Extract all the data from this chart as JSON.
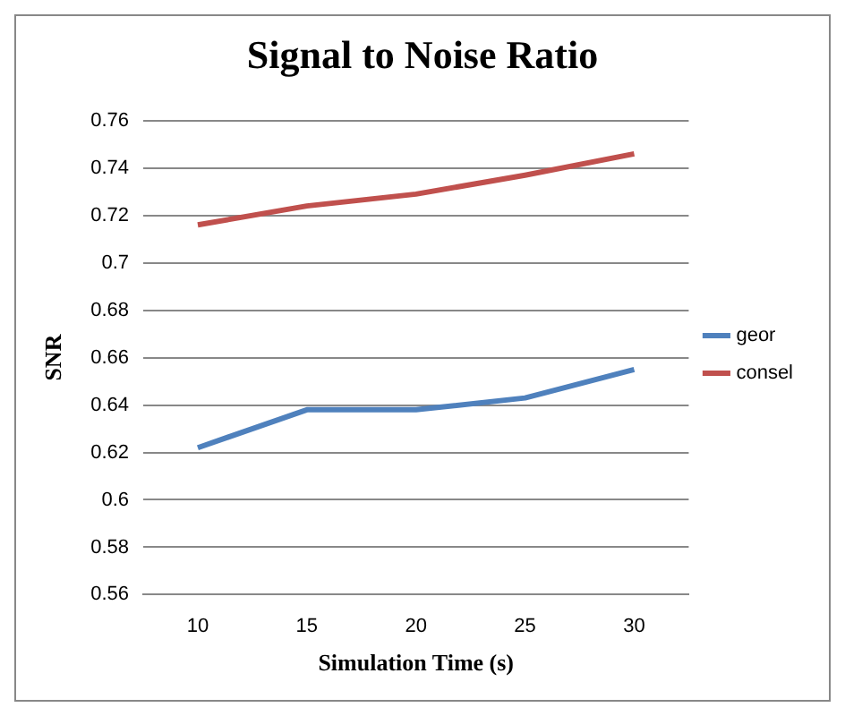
{
  "chart_data": {
    "type": "line",
    "title": "Signal to Noise Ratio",
    "xlabel": "Simulation Time (s)",
    "ylabel": "SNR",
    "categories": [
      "10",
      "15",
      "20",
      "25",
      "30"
    ],
    "series": [
      {
        "name": "geor",
        "color": "#4f81bd",
        "values": [
          0.622,
          0.638,
          0.638,
          0.643,
          0.655
        ]
      },
      {
        "name": "consel",
        "color": "#c0504d",
        "values": [
          0.716,
          0.724,
          0.729,
          0.737,
          0.746
        ]
      }
    ],
    "ylim": [
      0.56,
      0.76
    ],
    "yticks": [
      0.56,
      0.58,
      0.6,
      0.62,
      0.64,
      0.66,
      0.68,
      0.7,
      0.72,
      0.74,
      0.76
    ],
    "grid": "y",
    "legend": "right",
    "marker": "none",
    "line_style": "solid"
  }
}
